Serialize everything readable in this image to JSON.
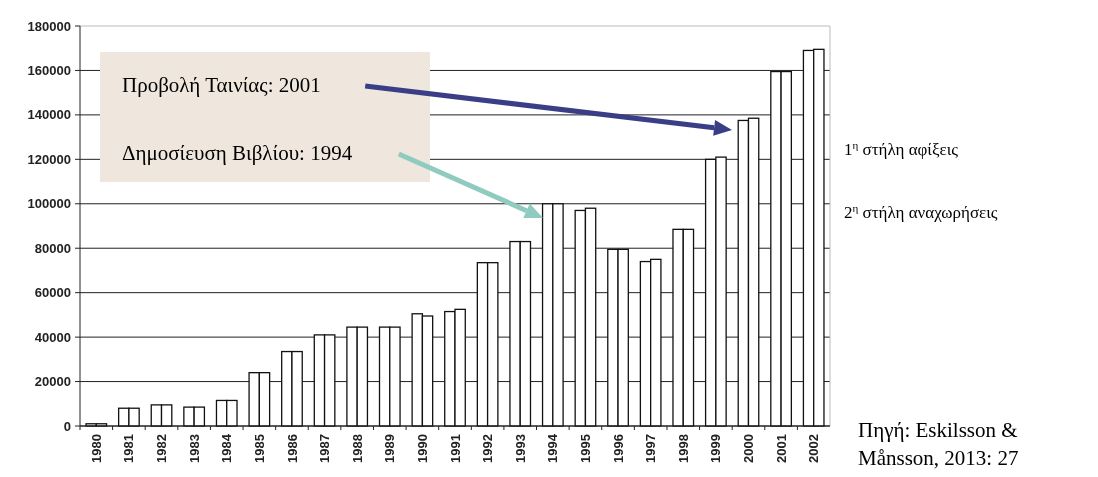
{
  "chart_data": {
    "type": "bar",
    "categories": [
      "1980",
      "1981",
      "1982",
      "1983",
      "1984",
      "1985",
      "1986",
      "1987",
      "1988",
      "1989",
      "1990",
      "1991",
      "1992",
      "1993",
      "1994",
      "1995",
      "1996",
      "1997",
      "1998",
      "1999",
      "2000",
      "2001",
      "2002"
    ],
    "series": [
      {
        "color": "#ffffff",
        "values": [
          1000,
          8000,
          9500,
          8500,
          11500,
          24000,
          33500,
          41000,
          44500,
          44500,
          50500,
          51500,
          73500,
          83000,
          100000,
          97000,
          79500,
          74000,
          88500,
          120000,
          137500,
          159500,
          169000
        ]
      },
      {
        "color": "#ffffff",
        "values": [
          1000,
          8000,
          9500,
          8500,
          11500,
          24000,
          33500,
          41000,
          44500,
          44500,
          49500,
          52500,
          73500,
          83000,
          100000,
          98000,
          79500,
          75000,
          88500,
          121000,
          138500,
          159500,
          169500
        ]
      }
    ],
    "ylim": [
      0,
      180000
    ],
    "yticks": [
      0,
      20000,
      40000,
      60000,
      80000,
      100000,
      120000,
      140000,
      160000,
      180000
    ],
    "grid": "y",
    "annotations": [
      "Προβολή Ταινίας: 2001",
      "Δημοσίευση Βιβλίου: 1994",
      "1$^{η}$ στήλη αφίξεις",
      "2$^{η}$ στήλη αναχωρήσεις",
      "Πηγή: Eskilsson & Månsson, 2013: 27"
    ]
  }
}
